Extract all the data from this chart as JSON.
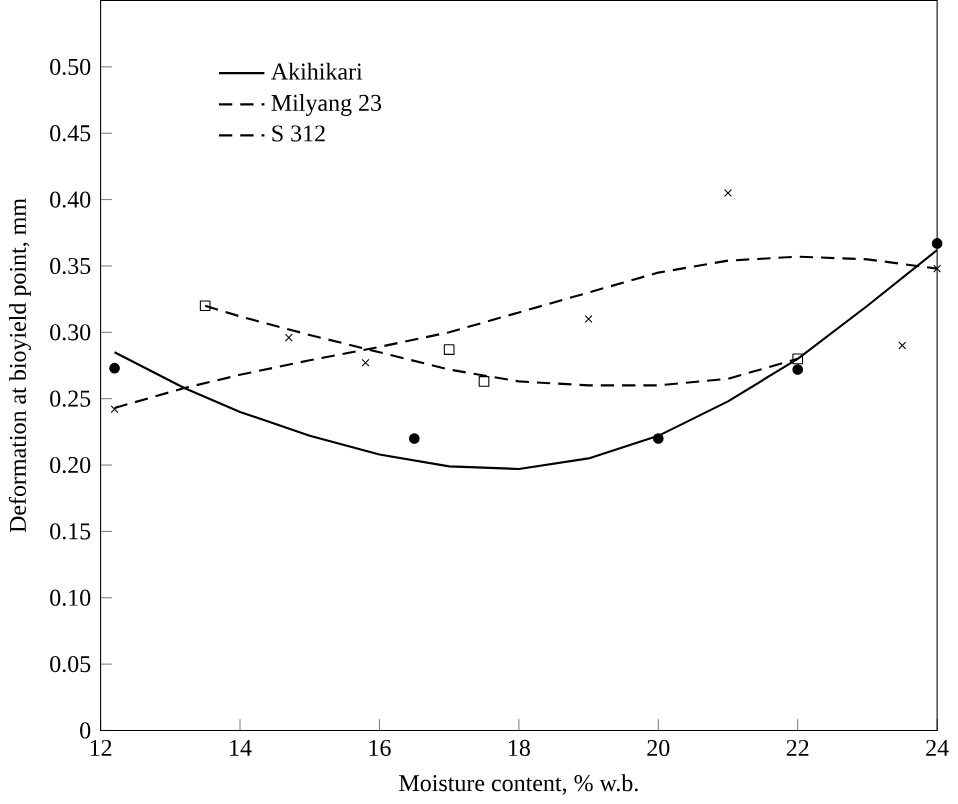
{
  "chart_data": {
    "type": "line",
    "xlabel": "Moisture content, % w.b.",
    "ylabel": "Deformation at bioyield point, mm",
    "xlim": [
      12,
      24
    ],
    "xticks": [
      12,
      14,
      16,
      18,
      20,
      22,
      24
    ],
    "ylim": [
      0,
      0.55
    ],
    "yticks": [
      {
        "value": 0,
        "label": "0"
      },
      {
        "value": 0.05,
        "label": "0.05"
      },
      {
        "value": 0.1,
        "label": "0.10"
      },
      {
        "value": 0.15,
        "label": "0.15"
      },
      {
        "value": 0.2,
        "label": "0.20"
      },
      {
        "value": 0.25,
        "label": "0.25"
      },
      {
        "value": 0.3,
        "label": "0.30"
      },
      {
        "value": 0.35,
        "label": "0.35"
      },
      {
        "value": 0.4,
        "label": "0.40"
      },
      {
        "value": 0.45,
        "label": "0.45"
      },
      {
        "value": 0.5,
        "label": "0.50"
      }
    ],
    "grid": false,
    "legend": "top left",
    "series": [
      {
        "name": "Akihikari",
        "color": "#000000",
        "marker": "none",
        "line_style": "solid",
        "x": [
          12.2,
          13.2,
          14,
          15,
          16,
          17,
          18,
          19,
          20,
          21,
          22,
          23,
          24
        ],
        "values": [
          0.285,
          0.258,
          0.24,
          0.222,
          0.208,
          0.199,
          0.197,
          0.205,
          0.222,
          0.248,
          0.28,
          0.32,
          0.362
        ]
      },
      {
        "name": "Milyang 23",
        "color": "#000000",
        "marker": "none",
        "line_style": "dashed",
        "x": [
          13.5,
          14,
          15,
          16,
          17,
          18,
          19,
          20,
          21,
          22
        ],
        "values": [
          0.32,
          0.312,
          0.298,
          0.285,
          0.272,
          0.263,
          0.26,
          0.26,
          0.265,
          0.28
        ]
      },
      {
        "name": "S 312",
        "color": "#000000",
        "marker": "none",
        "line_style": "dashed",
        "x": [
          12.2,
          13.2,
          14,
          15,
          16,
          17,
          18,
          19,
          20,
          21,
          22,
          23,
          24
        ],
        "values": [
          0.243,
          0.258,
          0.268,
          0.279,
          0.289,
          0.3,
          0.315,
          0.33,
          0.345,
          0.354,
          0.357,
          0.355,
          0.348
        ]
      },
      {
        "type": "scatter",
        "color": "#000000",
        "marker": "circle",
        "x": [
          12.2,
          16.5,
          20,
          22,
          24
        ],
        "values": [
          0.273,
          0.22,
          0.22,
          0.272,
          0.367
        ]
      },
      {
        "type": "scatter",
        "color": "#000000",
        "marker": "square",
        "x": [
          13.5,
          17,
          17.5,
          22
        ],
        "values": [
          0.32,
          0.287,
          0.263,
          0.28
        ]
      },
      {
        "type": "scatter",
        "color": "#000000",
        "marker": "cross",
        "x": [
          12.2,
          14.7,
          15.8,
          19,
          21,
          23.5,
          24
        ],
        "values": [
          0.242,
          0.296,
          0.277,
          0.31,
          0.405,
          0.29,
          0.348
        ]
      }
    ]
  }
}
